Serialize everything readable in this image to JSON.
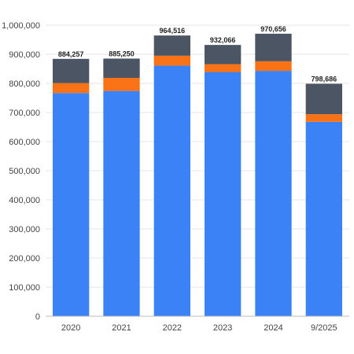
{
  "chart_data": {
    "type": "bar",
    "stacked": true,
    "categories": [
      "2020",
      "2021",
      "2022",
      "2023",
      "2024",
      "9/2025"
    ],
    "series": [
      {
        "color": "#3b82f6",
        "values": [
          767000,
          774000,
          861000,
          839000,
          843000,
          668000
        ]
      },
      {
        "color": "#f97316",
        "values": [
          34000,
          45000,
          34000,
          27000,
          33000,
          26000
        ]
      },
      {
        "color": "#4b5563",
        "values": [
          83257,
          66250,
          69516,
          66066,
          94656,
          104686
        ]
      }
    ],
    "totals": [
      884257,
      885250,
      964516,
      932066,
      970656,
      798686
    ],
    "total_labels": [
      "884,257",
      "885,250",
      "964,516",
      "932,066",
      "970,656",
      "798,686"
    ],
    "y_ticks": [
      "0",
      "100,000",
      "200,000",
      "300,000",
      "400,000",
      "500,000",
      "600,000",
      "700,000",
      "800,000",
      "900,000",
      "1,000,000"
    ],
    "ylim": [
      0,
      1000000
    ],
    "grid": true,
    "legend": "none",
    "title": "",
    "xlabel": "",
    "ylabel": ""
  }
}
